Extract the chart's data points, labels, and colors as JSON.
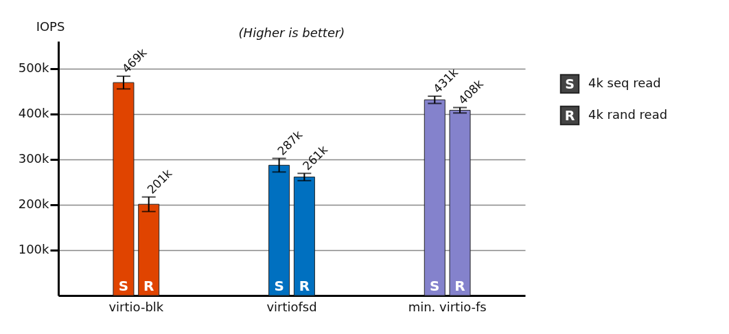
{
  "chart_data": {
    "type": "bar",
    "title": "(Higher is better)",
    "ylabel": "IOPS",
    "categories": [
      "virtio-blk",
      "virtiofsd",
      "min. virtio-fs"
    ],
    "series": [
      {
        "name": "4k seq read",
        "colors": [
          "#e04400",
          "#0070c0",
          "#8482cc"
        ],
        "values": [
          469000,
          287000,
          431000
        ],
        "errors": [
          14000,
          15000,
          8000
        ],
        "value_labels": [
          "469k",
          "287k",
          "431k"
        ]
      },
      {
        "name": "4k rand read",
        "colors": [
          "#e04400",
          "#0070c0",
          "#8482cc"
        ],
        "values": [
          201000,
          261000,
          408000
        ],
        "errors": [
          16000,
          8000,
          6000
        ],
        "value_labels": [
          "201k",
          "261k",
          "408k"
        ]
      }
    ],
    "ylim": [
      0,
      560000
    ],
    "yticks": [
      {
        "value": 100000,
        "label": "100k"
      },
      {
        "value": 200000,
        "label": "200k"
      },
      {
        "value": 300000,
        "label": "300k"
      },
      {
        "value": 400000,
        "label": "400k"
      },
      {
        "value": 500000,
        "label": "500k"
      }
    ],
    "grid": "y",
    "legend": "right",
    "annotations": [
      {
        "text": "S",
        "x": "virtio-blk",
        "y": 0
      },
      {
        "text": "R",
        "x": "virtio-blk",
        "y": 0
      },
      {
        "text": "S",
        "x": "virtiofsd",
        "y": 0
      },
      {
        "text": "R",
        "x": "virtiofsd",
        "y": 0
      },
      {
        "text": "S",
        "x": "min. virtio-fs",
        "y": 0
      },
      {
        "text": "R",
        "x": "min. virtio-fs",
        "y": 0
      }
    ]
  }
}
